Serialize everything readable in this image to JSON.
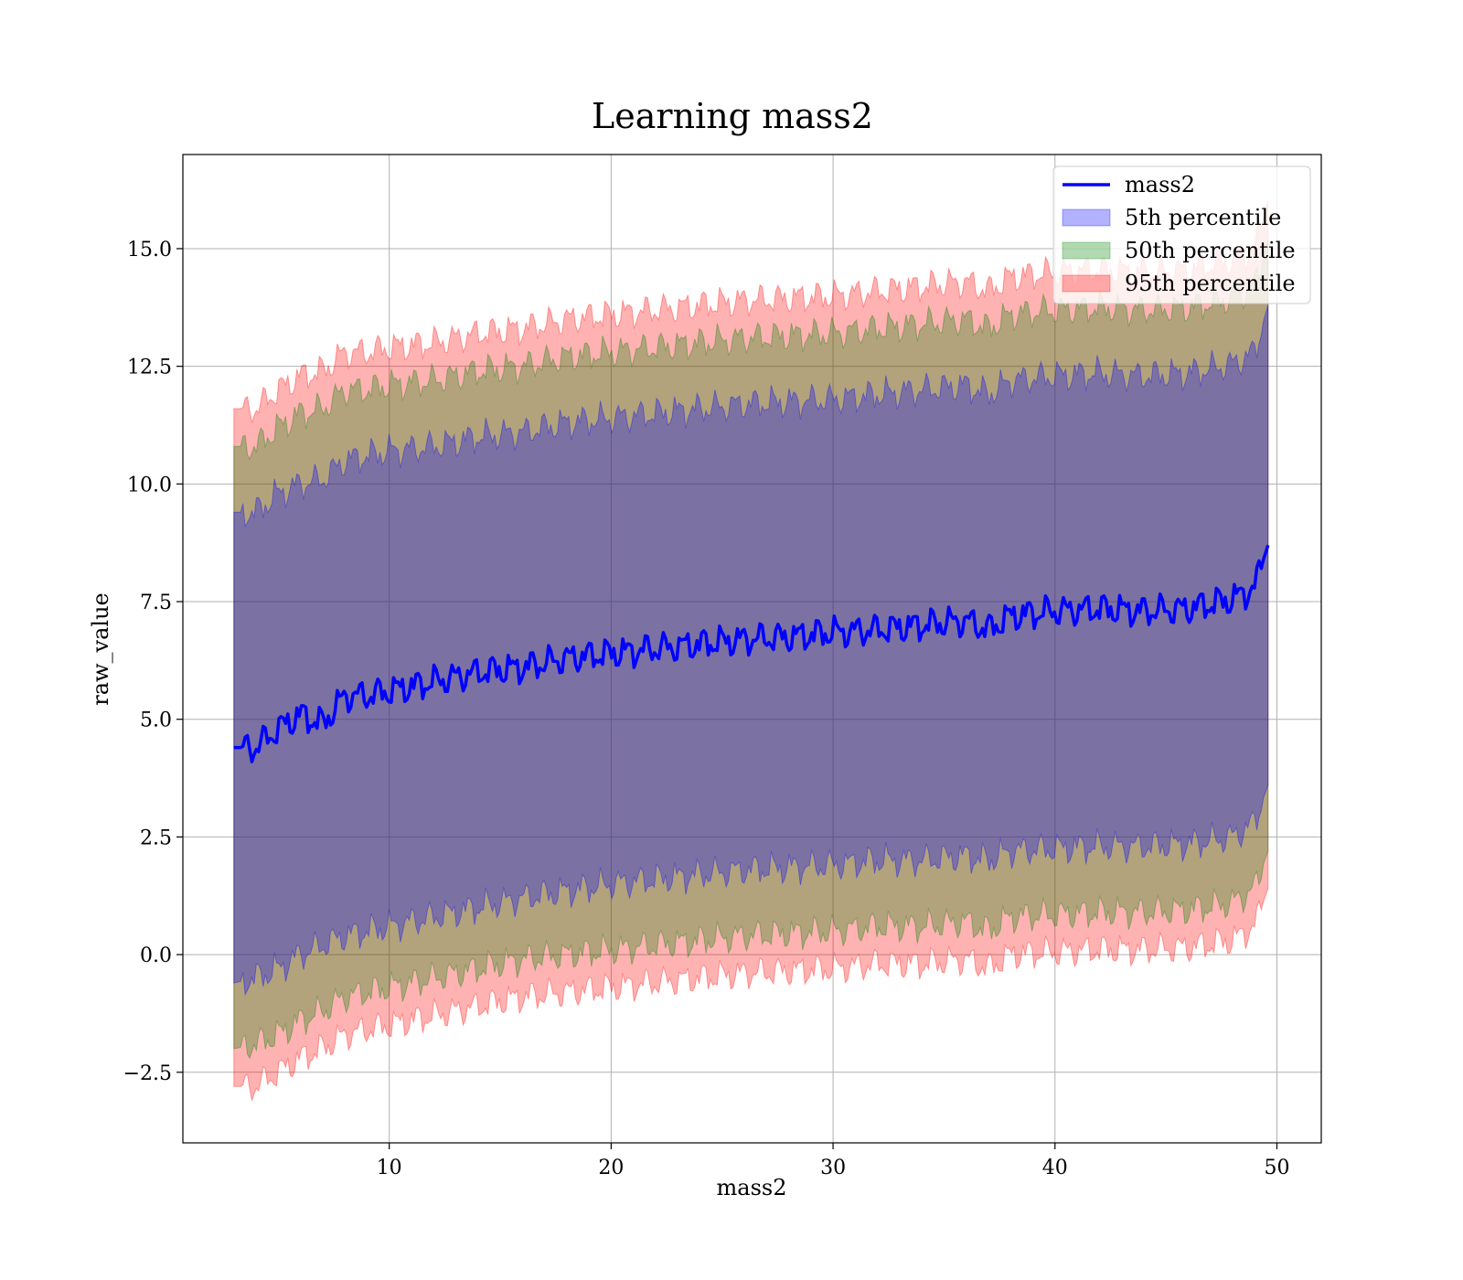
{
  "chart_data": {
    "type": "area",
    "title": "Learning mass2",
    "xlabel": "mass2",
    "ylabel": "raw_value",
    "xlim": [
      0.7,
      52.0
    ],
    "ylim": [
      -4.0,
      17.0
    ],
    "x_ticks": [
      10,
      20,
      30,
      40,
      50
    ],
    "y_ticks": [
      -2.5,
      0.0,
      2.5,
      5.0,
      7.5,
      10.0,
      12.5,
      15.0
    ],
    "x_tick_labels": [
      "10",
      "20",
      "30",
      "40",
      "50"
    ],
    "y_tick_labels": [
      "−2.5",
      "0.0",
      "2.5",
      "5.0",
      "7.5",
      "10.0",
      "12.5",
      "15.0"
    ],
    "grid": true,
    "legend_position": "top-right",
    "legend": [
      {
        "label": "mass2",
        "kind": "line",
        "color": "#0000ff"
      },
      {
        "label": "5th percentile",
        "kind": "patch",
        "color": "#0000ff"
      },
      {
        "label": "50th percentile",
        "kind": "patch",
        "color": "#008000"
      },
      {
        "label": "95th percentile",
        "kind": "patch",
        "color": "#ff0000"
      }
    ],
    "series": [
      {
        "name": "mass2",
        "kind": "line",
        "color": "#0000ff",
        "x": [
          3.0,
          4.0,
          5.0,
          6.0,
          7.0,
          8.0,
          9.0,
          10.0,
          12.0,
          14.0,
          16.0,
          18.0,
          20.0,
          22.0,
          24.0,
          26.0,
          28.0,
          30.0,
          32.0,
          34.0,
          36.0,
          37.0,
          38.0,
          40.0,
          42.0,
          44.0,
          46.0,
          48.0,
          49.0,
          49.6
        ],
        "y": [
          4.4,
          4.4,
          4.8,
          5.1,
          4.9,
          5.5,
          5.5,
          5.6,
          5.8,
          6.0,
          6.1,
          6.3,
          6.4,
          6.5,
          6.6,
          6.7,
          6.75,
          6.85,
          6.9,
          7.0,
          7.1,
          6.9,
          7.2,
          7.3,
          7.35,
          7.3,
          7.35,
          7.55,
          7.8,
          8.7
        ]
      },
      {
        "name": "5th percentile",
        "kind": "band",
        "color": "#0000ff",
        "opacity": 0.3,
        "x": [
          3.0,
          4.0,
          5.0,
          6.0,
          7.0,
          8.0,
          9.0,
          10.0,
          12.0,
          14.0,
          16.0,
          18.0,
          20.0,
          22.0,
          24.0,
          26.0,
          28.0,
          30.0,
          32.0,
          34.0,
          36.0,
          37.0,
          38.0,
          40.0,
          42.0,
          44.0,
          46.0,
          48.0,
          49.0,
          49.6
        ],
        "lower": [
          -0.6,
          -0.5,
          -0.3,
          0.0,
          0.2,
          0.4,
          0.5,
          0.6,
          0.8,
          1.0,
          1.2,
          1.35,
          1.5,
          1.6,
          1.7,
          1.8,
          1.85,
          1.9,
          2.0,
          2.0,
          2.1,
          2.0,
          2.2,
          2.25,
          2.3,
          2.3,
          2.35,
          2.5,
          2.8,
          3.6
        ],
        "upper": [
          9.4,
          9.4,
          9.8,
          10.0,
          10.1,
          10.5,
          10.6,
          10.7,
          10.8,
          11.0,
          11.1,
          11.3,
          11.4,
          11.5,
          11.6,
          11.7,
          11.75,
          11.8,
          11.9,
          12.0,
          12.1,
          11.9,
          12.2,
          12.3,
          12.35,
          12.3,
          12.35,
          12.55,
          12.8,
          13.8
        ]
      },
      {
        "name": "50th percentile",
        "kind": "band",
        "color": "#008000",
        "opacity": 0.3,
        "x": [
          3.0,
          4.0,
          5.0,
          6.0,
          7.0,
          8.0,
          9.0,
          10.0,
          12.0,
          14.0,
          16.0,
          18.0,
          20.0,
          22.0,
          24.0,
          26.0,
          28.0,
          30.0,
          32.0,
          34.0,
          36.0,
          37.0,
          38.0,
          40.0,
          42.0,
          44.0,
          46.0,
          48.0,
          49.0,
          49.6
        ],
        "lower": [
          -2.0,
          -1.9,
          -1.7,
          -1.4,
          -1.2,
          -0.9,
          -0.8,
          -0.7,
          -0.5,
          -0.3,
          -0.1,
          0.0,
          0.1,
          0.2,
          0.3,
          0.4,
          0.45,
          0.5,
          0.6,
          0.6,
          0.7,
          0.5,
          0.8,
          0.85,
          0.9,
          0.9,
          0.95,
          1.1,
          1.4,
          2.2
        ],
        "upper": [
          10.8,
          10.8,
          11.2,
          11.5,
          11.6,
          12.0,
          12.0,
          12.1,
          12.2,
          12.4,
          12.5,
          12.7,
          12.8,
          12.9,
          13.0,
          13.1,
          13.15,
          13.2,
          13.3,
          13.4,
          13.5,
          13.3,
          13.6,
          13.7,
          13.75,
          13.7,
          13.75,
          13.95,
          14.2,
          15.2
        ]
      },
      {
        "name": "95th percentile",
        "kind": "band",
        "color": "#ff0000",
        "opacity": 0.3,
        "x": [
          3.0,
          4.0,
          5.0,
          6.0,
          7.0,
          8.0,
          9.0,
          10.0,
          12.0,
          14.0,
          16.0,
          18.0,
          20.0,
          22.0,
          24.0,
          26.0,
          28.0,
          30.0,
          32.0,
          34.0,
          36.0,
          37.0,
          38.0,
          40.0,
          42.0,
          44.0,
          46.0,
          48.0,
          49.0,
          49.6
        ],
        "lower": [
          -2.8,
          -2.8,
          -2.5,
          -2.2,
          -2.0,
          -1.7,
          -1.6,
          -1.5,
          -1.3,
          -1.1,
          -0.9,
          -0.8,
          -0.7,
          -0.6,
          -0.5,
          -0.4,
          -0.35,
          -0.3,
          -0.2,
          -0.2,
          -0.1,
          -0.3,
          0.0,
          0.05,
          0.1,
          0.1,
          0.15,
          0.3,
          0.6,
          1.4
        ],
        "upper": [
          11.6,
          11.6,
          12.0,
          12.3,
          12.4,
          12.8,
          12.8,
          12.9,
          13.0,
          13.2,
          13.3,
          13.5,
          13.6,
          13.7,
          13.8,
          13.9,
          13.95,
          14.0,
          14.1,
          14.2,
          14.3,
          14.1,
          14.4,
          14.5,
          14.55,
          14.5,
          14.55,
          14.75,
          15.0,
          16.0
        ]
      }
    ]
  }
}
